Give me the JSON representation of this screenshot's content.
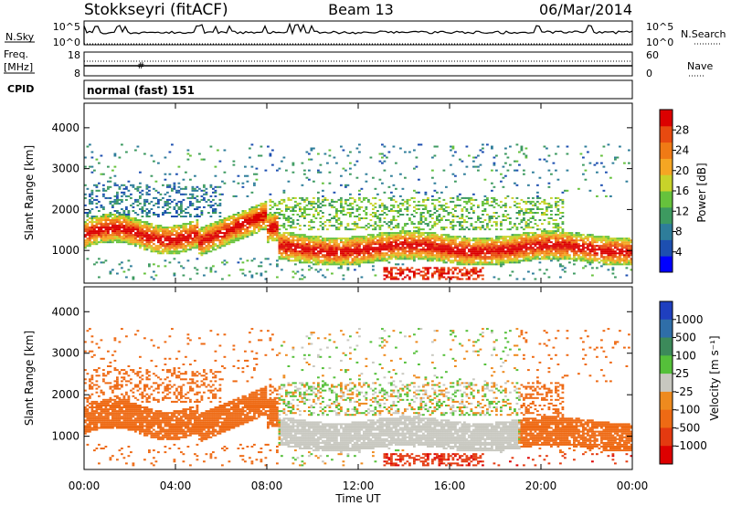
{
  "header": {
    "title": "Stokkseyri (fitACF)",
    "beam": "Beam 13",
    "date": "06/Mar/2014"
  },
  "sky_panel": {
    "label": "N.Sky",
    "left_ticks": [
      "10^5",
      "10^0"
    ],
    "right_ticks": [
      "10^5",
      "10^0"
    ],
    "right_label": "N.Search",
    "right_legend_line": "dotted"
  },
  "freq_panel": {
    "label_line1": "Freq.",
    "label_line2": "[MHz]",
    "left_ticks": [
      "18",
      "8"
    ],
    "right_ticks": [
      "60",
      "0"
    ],
    "right_label": "Nave",
    "right_legend_line": "dotted"
  },
  "cpid_panel": {
    "label": "CPID",
    "value": "normal (fast) 151"
  },
  "chart_data": [
    {
      "type": "heatmap",
      "name": "power",
      "ylabel": "Slant Range [km]",
      "ylim": [
        200,
        4600
      ],
      "yticks": [
        "1000",
        "2000",
        "3000",
        "4000"
      ],
      "xlim": [
        "00:00",
        "24:00"
      ],
      "colorbar_label": "Power [dB]",
      "colorbar_ticks": [
        "4",
        "8",
        "12",
        "16",
        "20",
        "24",
        "28"
      ],
      "colorbar_range": [
        0,
        32
      ],
      "colors": [
        "#0000ff",
        "#1d4fb0",
        "#2e7d9a",
        "#3d9a60",
        "#66c23c",
        "#c8d32a",
        "#f5a623",
        "#f07a15",
        "#e84a10",
        "#dc0000"
      ]
    },
    {
      "type": "heatmap",
      "name": "velocity",
      "ylabel": "Slant Range [km]",
      "ylim": [
        200,
        4600
      ],
      "yticks": [
        "1000",
        "2000",
        "3000",
        "4000"
      ],
      "xlabel": "Time UT",
      "xticks": [
        "00:00",
        "04:00",
        "08:00",
        "12:00",
        "16:00",
        "20:00",
        "00:00"
      ],
      "colorbar_label": "Velocity [m s⁻¹]",
      "colorbar_ticks": [
        "1000",
        "500",
        "100",
        "25",
        "-25",
        "-100",
        "-500",
        "-1000"
      ],
      "colors": [
        "#1f3fbf",
        "#2f6ea8",
        "#3c8a5a",
        "#55c03a",
        "#c8c8c0",
        "#ee8a1e",
        "#ee6a14",
        "#e43a10",
        "#dd0000"
      ]
    }
  ]
}
